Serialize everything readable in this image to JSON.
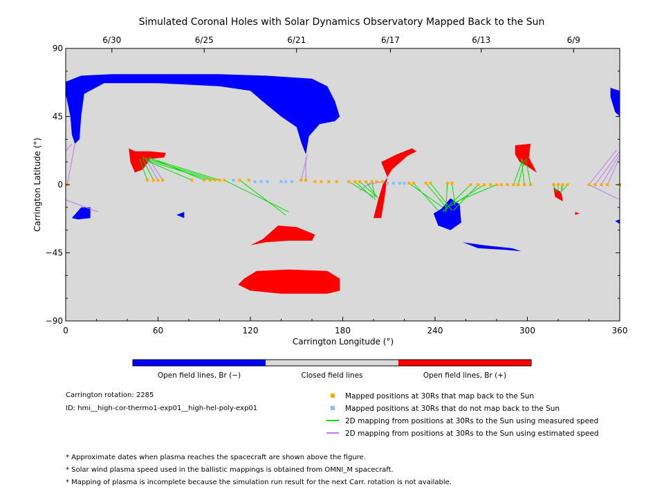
{
  "colors": {
    "background": "#d9d9d9",
    "open_negative": "#0000ff",
    "open_positive": "#ff0000",
    "closed": "#d9d9d9",
    "mapped_yes": "#ffaa00",
    "mapped_no": "#7fbfff",
    "line_measured": "#00dd00",
    "line_estimated": "#bb77ee"
  },
  "chart_data": {
    "type": "map",
    "title": "Simulated Coronal Holes with Solar Dynamics Observatory Mapped Back to the Sun",
    "xlabel": "Carrington Longitude (°)",
    "ylabel": "Carrington Latitude (°)",
    "xlim": [
      0,
      360
    ],
    "ylim": [
      -90,
      90
    ],
    "xticks": [
      0,
      60,
      120,
      180,
      240,
      300,
      360
    ],
    "yticks": [
      -90,
      -45,
      0,
      45,
      90
    ],
    "ytick_labels": [
      "−90",
      "−45",
      "0",
      "45",
      "90"
    ],
    "top_dates": [
      {
        "label": "6/30",
        "lon": 30
      },
      {
        "label": "6/25",
        "lon": 90
      },
      {
        "label": "6/21",
        "lon": 150
      },
      {
        "label": "6/17",
        "lon": 211
      },
      {
        "label": "6/13",
        "lon": 270
      },
      {
        "label": "6/9",
        "lon": 330
      }
    ],
    "colorbar": [
      {
        "label": "Open field lines, Br (−)",
        "color_key": "open_negative"
      },
      {
        "label": "Closed field lines",
        "color_key": "closed"
      },
      {
        "label": "Open field lines, Br (+)",
        "color_key": "open_positive"
      }
    ],
    "regions": [
      {
        "polarity": "negative",
        "points": [
          [
            0,
            68
          ],
          [
            10,
            72
          ],
          [
            30,
            73
          ],
          [
            60,
            73
          ],
          [
            100,
            73
          ],
          [
            130,
            72
          ],
          [
            160,
            70
          ],
          [
            170,
            65
          ],
          [
            175,
            55
          ],
          [
            178,
            45
          ],
          [
            175,
            42
          ],
          [
            165,
            40
          ],
          [
            158,
            32
          ],
          [
            156,
            20
          ],
          [
            153,
            28
          ],
          [
            150,
            38
          ],
          [
            140,
            45
          ],
          [
            128,
            55
          ],
          [
            120,
            62
          ],
          [
            100,
            65
          ],
          [
            60,
            67
          ],
          [
            25,
            67
          ],
          [
            12,
            60
          ],
          [
            10,
            45
          ],
          [
            9,
            30
          ],
          [
            6,
            27
          ],
          [
            4,
            33
          ],
          [
            3,
            45
          ],
          [
            0,
            60
          ]
        ]
      },
      {
        "polarity": "negative",
        "points": [
          [
            354,
            64
          ],
          [
            360,
            62
          ],
          [
            360,
            45
          ],
          [
            357,
            48
          ],
          [
            354,
            58
          ]
        ]
      },
      {
        "polarity": "negative",
        "points": [
          [
            4,
            -22
          ],
          [
            10,
            -15
          ],
          [
            16,
            -15
          ],
          [
            16,
            -22
          ],
          [
            8,
            -23
          ]
        ]
      },
      {
        "polarity": "negative",
        "points": [
          [
            72,
            -20
          ],
          [
            77,
            -18
          ],
          [
            77,
            -22
          ]
        ]
      },
      {
        "polarity": "negative",
        "points": [
          [
            244,
            -16
          ],
          [
            250,
            -9
          ],
          [
            256,
            -13
          ],
          [
            257,
            -25
          ],
          [
            250,
            -30
          ],
          [
            242,
            -27
          ],
          [
            239,
            -19
          ]
        ]
      },
      {
        "polarity": "negative",
        "points": [
          [
            258,
            -38
          ],
          [
            272,
            -40
          ],
          [
            290,
            -42
          ],
          [
            296,
            -44
          ],
          [
            285,
            -43
          ],
          [
            268,
            -42
          ]
        ]
      },
      {
        "polarity": "negative",
        "points": [
          [
            357,
            -24
          ],
          [
            360,
            -23
          ],
          [
            360,
            -26
          ]
        ]
      },
      {
        "polarity": "positive",
        "points": [
          [
            41,
            24
          ],
          [
            45,
            22
          ],
          [
            55,
            22
          ],
          [
            65,
            21
          ],
          [
            64,
            18
          ],
          [
            55,
            17
          ],
          [
            50,
            10
          ],
          [
            45,
            8
          ],
          [
            42,
            15
          ]
        ]
      },
      {
        "polarity": "positive",
        "points": [
          [
            205,
            15
          ],
          [
            215,
            20
          ],
          [
            225,
            24
          ],
          [
            228,
            22
          ],
          [
            222,
            19
          ],
          [
            212,
            10
          ],
          [
            206,
            0
          ],
          [
            203,
            -10
          ],
          [
            200,
            -22
          ],
          [
            205,
            -22
          ],
          [
            207,
            -10
          ],
          [
            209,
            5
          ]
        ]
      },
      {
        "polarity": "positive",
        "points": [
          [
            292,
            26
          ],
          [
            302,
            27
          ],
          [
            301,
            18
          ],
          [
            306,
            8
          ],
          [
            300,
            12
          ],
          [
            295,
            15
          ],
          [
            292,
            20
          ]
        ]
      },
      {
        "polarity": "positive",
        "points": [
          [
            317,
            -2
          ],
          [
            322,
            -5
          ],
          [
            323,
            -11
          ],
          [
            318,
            -8
          ]
        ]
      },
      {
        "polarity": "positive",
        "points": [
          [
            331,
            -18
          ],
          [
            334,
            -19
          ],
          [
            331,
            -20
          ]
        ]
      },
      {
        "polarity": "positive",
        "points": [
          [
            120,
            -40
          ],
          [
            128,
            -36
          ],
          [
            138,
            -27
          ],
          [
            150,
            -28
          ],
          [
            162,
            -33
          ],
          [
            160,
            -37
          ],
          [
            145,
            -37
          ],
          [
            130,
            -38
          ]
        ]
      },
      {
        "polarity": "positive",
        "points": [
          [
            116,
            -62
          ],
          [
            124,
            -57
          ],
          [
            145,
            -56
          ],
          [
            170,
            -57
          ],
          [
            178,
            -62
          ],
          [
            178,
            -70
          ],
          [
            170,
            -72
          ],
          [
            140,
            -72
          ],
          [
            120,
            -70
          ],
          [
            112,
            -66
          ]
        ]
      }
    ],
    "mapped_points_orange": [
      [
        1,
        0
      ],
      [
        53,
        3
      ],
      [
        57,
        3
      ],
      [
        60,
        3
      ],
      [
        63,
        3
      ],
      [
        82,
        3
      ],
      [
        90,
        3
      ],
      [
        94,
        3
      ],
      [
        97,
        3
      ],
      [
        100,
        3
      ],
      [
        103,
        3
      ],
      [
        113,
        3
      ],
      [
        119,
        3
      ],
      [
        153,
        3
      ],
      [
        156,
        3
      ],
      [
        162,
        2
      ],
      [
        166,
        2
      ],
      [
        171,
        2
      ],
      [
        176,
        2
      ],
      [
        184,
        2
      ],
      [
        188,
        2
      ],
      [
        191,
        2
      ],
      [
        195,
        2
      ],
      [
        199,
        2
      ],
      [
        202,
        2
      ],
      [
        206,
        2
      ],
      [
        223,
        1
      ],
      [
        226,
        1
      ],
      [
        234,
        1
      ],
      [
        237,
        1
      ],
      [
        248,
        1
      ],
      [
        251,
        1
      ],
      [
        263,
        0
      ],
      [
        268,
        0
      ],
      [
        272,
        0
      ],
      [
        276,
        0
      ],
      [
        280,
        0
      ],
      [
        283,
        0
      ],
      [
        287,
        0
      ],
      [
        291,
        0
      ],
      [
        294,
        0
      ],
      [
        298,
        0
      ],
      [
        302,
        0
      ],
      [
        317,
        0
      ],
      [
        320,
        0
      ],
      [
        323,
        0
      ],
      [
        326,
        0
      ],
      [
        340,
        0
      ],
      [
        344,
        0
      ],
      [
        348,
        0
      ],
      [
        352,
        0
      ],
      [
        360,
        0
      ]
    ],
    "mapped_points_blue": [
      [
        109,
        3
      ],
      [
        123,
        2
      ],
      [
        127,
        2
      ],
      [
        131,
        2
      ],
      [
        140,
        2
      ],
      [
        143,
        2
      ],
      [
        147,
        2
      ],
      [
        209,
        1
      ],
      [
        213,
        1
      ],
      [
        217,
        1
      ],
      [
        220,
        1
      ]
    ],
    "mapping_lines_measured": [
      [
        [
          53,
          3
        ],
        [
          48,
          17
        ]
      ],
      [
        [
          57,
          3
        ],
        [
          50,
          17
        ]
      ],
      [
        [
          82,
          3
        ],
        [
          52,
          16
        ]
      ],
      [
        [
          90,
          3
        ],
        [
          54,
          18
        ]
      ],
      [
        [
          94,
          3
        ],
        [
          53,
          16
        ]
      ],
      [
        [
          97,
          3
        ],
        [
          50,
          18
        ]
      ],
      [
        [
          100,
          3
        ],
        [
          56,
          17
        ]
      ],
      [
        [
          103,
          3
        ],
        [
          145,
          -18
        ]
      ],
      [
        [
          113,
          3
        ],
        [
          143,
          -20
        ]
      ],
      [
        [
          184,
          2
        ],
        [
          200,
          -8
        ]
      ],
      [
        [
          188,
          2
        ],
        [
          200,
          -9
        ]
      ],
      [
        [
          191,
          2
        ],
        [
          202,
          -8
        ]
      ],
      [
        [
          195,
          2
        ],
        [
          203,
          -9
        ]
      ],
      [
        [
          199,
          2
        ],
        [
          201,
          -10
        ]
      ],
      [
        [
          223,
          1
        ],
        [
          245,
          -15
        ]
      ],
      [
        [
          226,
          1
        ],
        [
          242,
          -17
        ]
      ],
      [
        [
          234,
          1
        ],
        [
          248,
          -16
        ]
      ],
      [
        [
          237,
          1
        ],
        [
          251,
          -17
        ]
      ],
      [
        [
          248,
          1
        ],
        [
          247,
          -18
        ]
      ],
      [
        [
          251,
          1
        ],
        [
          253,
          -14
        ]
      ],
      [
        [
          263,
          0
        ],
        [
          245,
          -18
        ]
      ],
      [
        [
          268,
          0
        ],
        [
          252,
          -17
        ]
      ],
      [
        [
          272,
          0
        ],
        [
          250,
          -14
        ]
      ],
      [
        [
          280,
          0
        ],
        [
          252,
          -12
        ]
      ],
      [
        [
          291,
          0
        ],
        [
          297,
          17
        ]
      ],
      [
        [
          294,
          0
        ],
        [
          298,
          16
        ]
      ],
      [
        [
          298,
          0
        ],
        [
          296,
          18
        ]
      ],
      [
        [
          302,
          0
        ],
        [
          299,
          17
        ]
      ],
      [
        [
          317,
          0
        ],
        [
          319,
          -5
        ]
      ],
      [
        [
          320,
          0
        ],
        [
          320,
          -4
        ]
      ],
      [
        [
          323,
          0
        ],
        [
          322,
          -4
        ]
      ],
      [
        [
          326,
          0
        ],
        [
          321,
          -6
        ]
      ],
      [
        [
          360,
          0
        ],
        [
          360,
          -1
        ]
      ]
    ],
    "mapping_lines_estimated": [
      [
        [
          1,
          0
        ],
        [
          6,
          27
        ]
      ],
      [
        [
          0,
          -10
        ],
        [
          21,
          -18
        ]
      ],
      [
        [
          0,
          22
        ],
        [
          4,
          27
        ]
      ],
      [
        [
          60,
          3
        ],
        [
          52,
          17
        ]
      ],
      [
        [
          63,
          3
        ],
        [
          54,
          17
        ]
      ],
      [
        [
          153,
          3
        ],
        [
          157,
          20
        ]
      ],
      [
        [
          156,
          3
        ],
        [
          156,
          18
        ]
      ],
      [
        [
          206,
          2
        ],
        [
          196,
          0
        ]
      ],
      [
        [
          199,
          2
        ],
        [
          191,
          -4
        ]
      ],
      [
        [
          340,
          0
        ],
        [
          358,
          23
        ]
      ],
      [
        [
          344,
          0
        ],
        [
          360,
          22
        ]
      ],
      [
        [
          348,
          0
        ],
        [
          360,
          20
        ]
      ],
      [
        [
          352,
          0
        ],
        [
          360,
          18
        ]
      ],
      [
        [
          340,
          0
        ],
        [
          360,
          -10
        ]
      ],
      [
        [
          322,
          0
        ],
        [
          322,
          -4
        ]
      ]
    ],
    "legend": [
      {
        "marker": "square",
        "color_key": "mapped_yes",
        "label": "Mapped positions at 30Rs that map back to the Sun"
      },
      {
        "marker": "square",
        "color_key": "mapped_no",
        "label": "Mapped positions at 30Rs that do not map back to the Sun"
      },
      {
        "marker": "line",
        "color_key": "line_measured",
        "label": "2D mapping from positions at 30Rs to the Sun using measured speed"
      },
      {
        "marker": "line",
        "color_key": "line_estimated",
        "label": "2D mapping from positions at 30Rs to the Sun using estimated speed"
      }
    ]
  },
  "info": {
    "rotation": "Carrington rotation: 2285",
    "id": "ID: hmi__high-cor-thermo1-exp01__high-hel-poly-exp01"
  },
  "footnotes": [
    "* Approximate dates when plasma reaches the spacecraft are shown above the figure.",
    "* Solar wind plasma speed used in the ballistic mappings is obtained from OMNI_M spacecraft.",
    "* Mapping of plasma is incomplete because the simulation run result for the next Carr. rotation is not available."
  ]
}
